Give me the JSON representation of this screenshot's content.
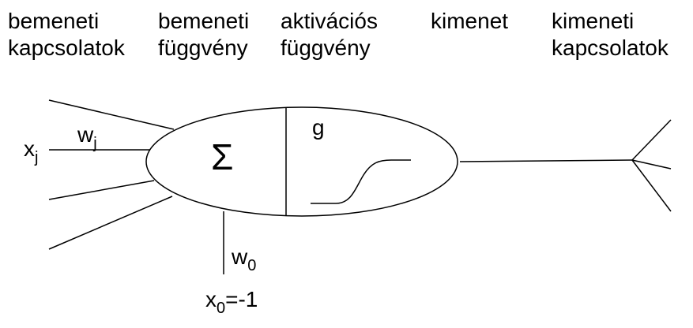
{
  "headers": [
    {
      "line1": "bemeneti",
      "line2": "kapcsolatok"
    },
    {
      "line1": "bemeneti",
      "line2": "függvény"
    },
    {
      "line1": "aktivációs",
      "line2": "függvény"
    },
    {
      "line1": "kimenet",
      "line2": ""
    },
    {
      "line1": "kimeneti",
      "line2": "kapcsolatok"
    }
  ],
  "labels": {
    "input_x": "x",
    "input_x_sub": "j",
    "weight_w": "w",
    "weight_w_sub": "j",
    "sum_symbol": "Σ",
    "activation_g": "g",
    "bias_weight": "w",
    "bias_weight_sub": "0",
    "bias_input": "x",
    "bias_input_sub": "0",
    "bias_value": "=-1"
  }
}
